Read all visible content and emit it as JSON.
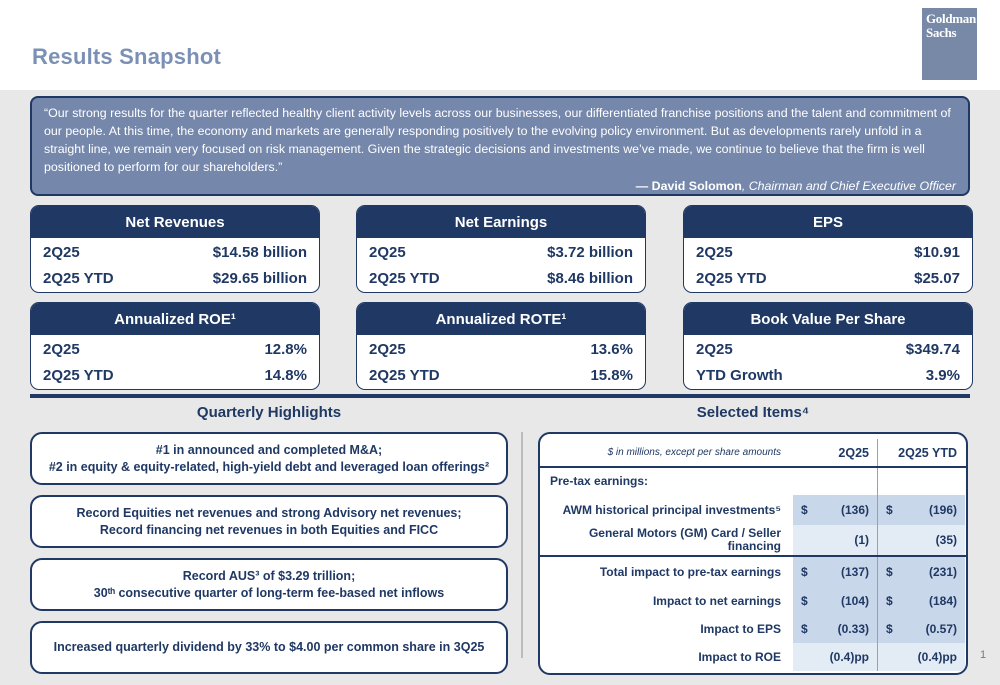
{
  "page": {
    "title": "Results Snapshot",
    "page_number": "1"
  },
  "logo": {
    "line1": "Goldman",
    "line2": "Sachs"
  },
  "colors": {
    "navy": "#1F3864",
    "quote_bg": "#7587AB",
    "logo_bg": "#7889A8",
    "title_blue": "#7B90B5",
    "shade_dark": "#C9D7EA",
    "shade_light": "#E3EBF5",
    "page_bg": "#E8E8E8"
  },
  "quote": {
    "text": "“Our strong results for the quarter reflected healthy client activity levels across our businesses, our differentiated franchise positions and the talent and commitment of our people. At this time, the economy and markets are generally responding positively to the evolving policy environment. But as developments rarely unfold in a straight line, we remain very focused on risk management. Given the strategic decisions and investments we’ve made, we continue to believe that the firm is well positioned to perform for our shareholders.”",
    "attribution_name": "— David Solomon",
    "attribution_title": ", Chairman and Chief Executive Officer"
  },
  "metric_cards": [
    {
      "title": "Net Revenues",
      "rows": [
        {
          "label": "2Q25",
          "value": "$14.58 billion"
        },
        {
          "label": "2Q25 YTD",
          "value": "$29.65 billion"
        }
      ]
    },
    {
      "title": "Net Earnings",
      "rows": [
        {
          "label": "2Q25",
          "value": "$3.72 billion"
        },
        {
          "label": "2Q25 YTD",
          "value": "$8.46 billion"
        }
      ]
    },
    {
      "title": "EPS",
      "rows": [
        {
          "label": "2Q25",
          "value": "$10.91"
        },
        {
          "label": "2Q25 YTD",
          "value": "$25.07"
        }
      ]
    },
    {
      "title": "Annualized ROE¹",
      "rows": [
        {
          "label": "2Q25",
          "value": "12.8%"
        },
        {
          "label": "2Q25 YTD",
          "value": "14.8%"
        }
      ]
    },
    {
      "title": "Annualized ROTE¹",
      "rows": [
        {
          "label": "2Q25",
          "value": "13.6%"
        },
        {
          "label": "2Q25 YTD",
          "value": "15.8%"
        }
      ]
    },
    {
      "title": "Book Value Per Share",
      "rows": [
        {
          "label": "2Q25",
          "value": "$349.74"
        },
        {
          "label": "YTD Growth",
          "value": "3.9%"
        }
      ]
    }
  ],
  "highlights": {
    "title": "Quarterly Highlights",
    "items": [
      {
        "line1": "#1 in announced and completed M&A;",
        "line2": "#2 in equity & equity-related, high-yield debt and leveraged loan offerings²"
      },
      {
        "line1": "Record Equities net revenues and strong Advisory net revenues;",
        "line2": "Record financing net revenues in both Equities and FICC"
      },
      {
        "line1": "Record AUS³ of $3.29 trillion;",
        "line2": "30ᵗʰ consecutive quarter of long-term fee-based net inflows"
      },
      {
        "line1": "Increased quarterly dividend by 33% to $4.00 per common share in 3Q25",
        "line2": ""
      }
    ]
  },
  "selected_items": {
    "title": "Selected Items⁴",
    "unit_note": "$ in millions, except per share amounts",
    "col_headers": [
      "2Q25",
      "2Q25 YTD"
    ],
    "section_label": "Pre-tax earnings:",
    "rows": [
      {
        "label": "AWM historical principal investments⁵",
        "q_dollar": "$",
        "q_value": "(136)",
        "ytd_dollar": "$",
        "ytd_value": "(196)"
      },
      {
        "label": "General Motors (GM) Card / Seller financing",
        "q_dollar": "",
        "q_value": "(1)",
        "ytd_dollar": "",
        "ytd_value": "(35)"
      },
      {
        "label": "Total impact to pre-tax earnings",
        "q_dollar": "$",
        "q_value": "(137)",
        "ytd_dollar": "$",
        "ytd_value": "(231)"
      },
      {
        "label": "Impact to net earnings",
        "q_dollar": "$",
        "q_value": "(104)",
        "ytd_dollar": "$",
        "ytd_value": "(184)"
      },
      {
        "label": "Impact to EPS",
        "q_dollar": "$",
        "q_value": "(0.33)",
        "ytd_dollar": "$",
        "ytd_value": "(0.57)"
      },
      {
        "label": "Impact to ROE",
        "q_dollar": "",
        "q_value": "(0.4)pp",
        "ytd_dollar": "",
        "ytd_value": "(0.4)pp"
      }
    ]
  }
}
